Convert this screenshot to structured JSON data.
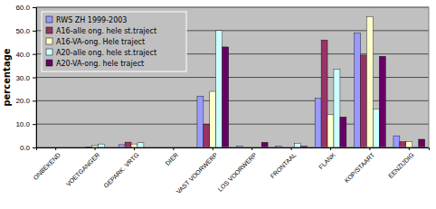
{
  "chart_data": {
    "type": "bar",
    "y_label": "percentage",
    "categories": [
      "ONBEKEND",
      "VOETGANGER",
      "GEPARK. VRTG",
      "DIER",
      "VAST VOORWERP",
      "LOS VOORWERP",
      "FRONTAAL",
      "FLANK",
      "KOP/STAART",
      "EENZIJDIG"
    ],
    "series": [
      {
        "name": "RWS ZH 1999-2003",
        "color": "#9999ff",
        "values": [
          0,
          0,
          1.2,
          0,
          22,
          0.5,
          0.5,
          21,
          49,
          5
        ]
      },
      {
        "name": "A16-alle ong. hele st.traject",
        "color": "#993366",
        "values": [
          0,
          0.3,
          2.3,
          0,
          10,
          0,
          0,
          46,
          39.5,
          2.5
        ]
      },
      {
        "name": "A16-VA-ong. Hele traject",
        "color": "#ffffcc",
        "values": [
          0,
          0.8,
          1.5,
          0,
          24,
          0,
          0,
          14,
          56,
          2.5
        ]
      },
      {
        "name": "A20-alle ong. hele st.traject",
        "color": "#ccffff",
        "values": [
          0,
          1.5,
          2.0,
          0,
          50,
          0,
          1.8,
          33.5,
          16.5,
          0
        ]
      },
      {
        "name": "A20-VA-ong. hele traject",
        "color": "#660066",
        "values": [
          0,
          0,
          0,
          0,
          43,
          2.2,
          0.5,
          13,
          39,
          3.5
        ]
      }
    ],
    "ylim": [
      0,
      60
    ],
    "yticks": [
      {
        "value": 0,
        "label": "0.0"
      },
      {
        "value": 10,
        "label": "10.0"
      },
      {
        "value": 20,
        "label": "20.0"
      },
      {
        "value": 30,
        "label": "30.0"
      },
      {
        "value": 40,
        "label": "40.0"
      },
      {
        "value": 50,
        "label": "50.0"
      },
      {
        "value": 60,
        "label": "60.0"
      }
    ],
    "grid": true,
    "legend": "top-left"
  }
}
